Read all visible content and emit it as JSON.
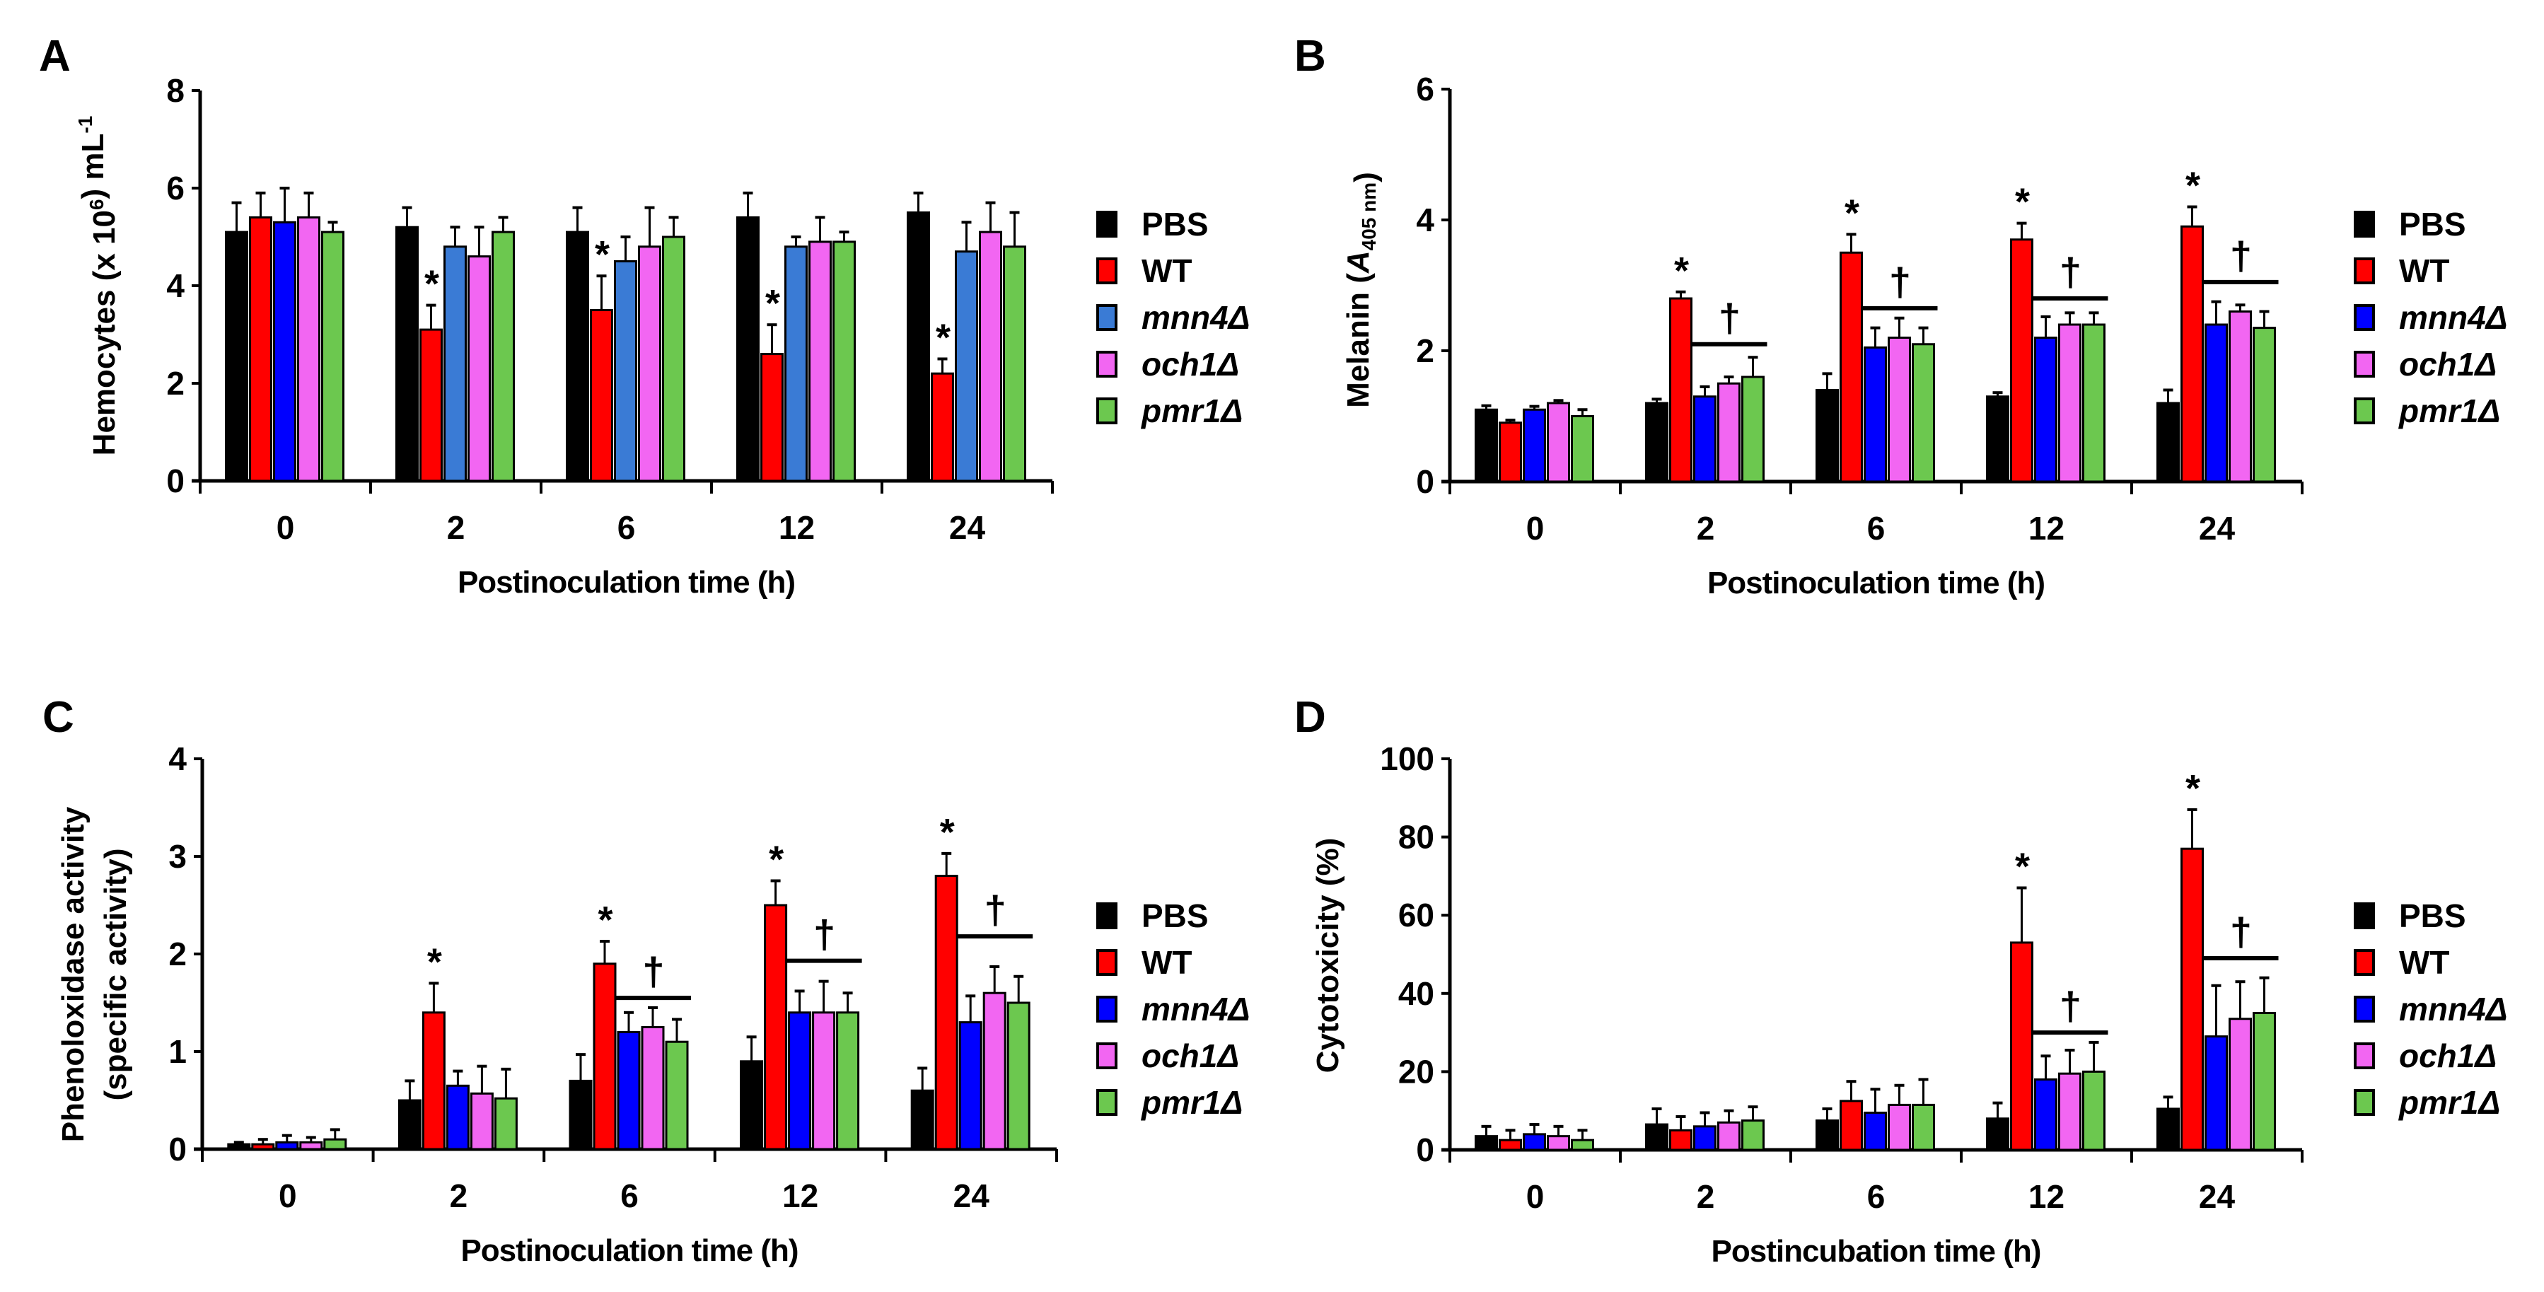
{
  "legend_colors": {
    "PBS": "#000000",
    "WT": "#ff0000",
    "mnn4Δ": "#0000ff",
    "och1Δ": "#f266f2",
    "pmr1Δ": "#6cc84f"
  },
  "chart_data": [
    {
      "panel": "A",
      "type": "bar",
      "ylabel_parts": [
        {
          "t": "Hemocytes (x 10"
        },
        {
          "t": "6",
          "sup": true
        },
        {
          "t": ") mL"
        },
        {
          "t": "-1",
          "sup": true
        }
      ],
      "xlabel": "Postinoculation time (h)",
      "categories": [
        "0",
        "2",
        "6",
        "12",
        "24"
      ],
      "ylim": [
        0,
        8
      ],
      "yticks": [
        "0",
        "2",
        "4",
        "6",
        "8"
      ],
      "series_colors_override": {
        "mnn4Δ": "#3a7bd5"
      },
      "series": [
        {
          "name": "PBS",
          "values": [
            5.1,
            5.2,
            5.1,
            5.4,
            5.5
          ],
          "errors": [
            0.6,
            0.4,
            0.5,
            0.5,
            0.4
          ]
        },
        {
          "name": "WT",
          "values": [
            5.4,
            3.1,
            3.5,
            2.6,
            2.2
          ],
          "errors": [
            0.5,
            0.5,
            0.7,
            0.6,
            0.3
          ]
        },
        {
          "name": "mnn4Δ",
          "values": [
            5.3,
            4.8,
            4.5,
            4.8,
            4.7
          ],
          "errors": [
            0.7,
            0.4,
            0.5,
            0.2,
            0.6
          ]
        },
        {
          "name": "och1Δ",
          "values": [
            5.4,
            4.6,
            4.8,
            4.9,
            5.1
          ],
          "errors": [
            0.5,
            0.6,
            0.8,
            0.5,
            0.6
          ]
        },
        {
          "name": "pmr1Δ",
          "values": [
            5.1,
            5.1,
            5.0,
            4.9,
            4.8
          ],
          "errors": [
            0.2,
            0.3,
            0.4,
            0.2,
            0.7
          ]
        }
      ],
      "star_categories": [
        1,
        2,
        3,
        4
      ],
      "star_symbol": "*",
      "daggers": [],
      "dagger_symbol": "†"
    },
    {
      "panel": "B",
      "type": "bar",
      "ylabel_parts": [
        {
          "t": "Melanin ("
        },
        {
          "t": "A",
          "italic": true
        },
        {
          "t": "405 nm",
          "sub": true
        },
        {
          "t": ")"
        }
      ],
      "xlabel": "Postinoculation time (h)",
      "categories": [
        "0",
        "2",
        "6",
        "12",
        "24"
      ],
      "ylim": [
        0,
        6
      ],
      "yticks": [
        "0",
        "2",
        "4",
        "6"
      ],
      "series": [
        {
          "name": "PBS",
          "values": [
            1.1,
            1.2,
            1.4,
            1.3,
            1.2
          ],
          "errors": [
            0.06,
            0.06,
            0.25,
            0.06,
            0.2
          ]
        },
        {
          "name": "WT",
          "values": [
            0.9,
            2.8,
            3.5,
            3.7,
            3.9
          ],
          "errors": [
            0.04,
            0.1,
            0.28,
            0.25,
            0.3
          ]
        },
        {
          "name": "mnn4Δ",
          "values": [
            1.1,
            1.3,
            2.05,
            2.2,
            2.4
          ],
          "errors": [
            0.05,
            0.15,
            0.3,
            0.32,
            0.35
          ]
        },
        {
          "name": "och1Δ",
          "values": [
            1.2,
            1.5,
            2.2,
            2.4,
            2.6
          ],
          "errors": [
            0.04,
            0.1,
            0.3,
            0.18,
            0.1
          ]
        },
        {
          "name": "pmr1Δ",
          "values": [
            1.0,
            1.6,
            2.1,
            2.4,
            2.35
          ],
          "errors": [
            0.1,
            0.3,
            0.25,
            0.18,
            0.25
          ]
        }
      ],
      "star_categories": [
        1,
        2,
        3,
        4
      ],
      "star_symbol": "*",
      "daggers": [
        {
          "category": 1,
          "level": 2.1
        },
        {
          "category": 2,
          "level": 2.65
        },
        {
          "category": 3,
          "level": 2.8
        },
        {
          "category": 4,
          "level": 3.05
        }
      ],
      "dagger_symbol": "†"
    },
    {
      "panel": "C",
      "type": "bar",
      "ylabel_lines": [
        "Phenoloxidase activity",
        "(specific activity)"
      ],
      "xlabel": "Postinoculation time (h)",
      "categories": [
        "0",
        "2",
        "6",
        "12",
        "24"
      ],
      "ylim": [
        0,
        4
      ],
      "yticks": [
        "0",
        "1",
        "2",
        "3",
        "4"
      ],
      "series": [
        {
          "name": "PBS",
          "values": [
            0.05,
            0.5,
            0.7,
            0.9,
            0.6
          ],
          "errors": [
            0.02,
            0.2,
            0.27,
            0.25,
            0.23
          ]
        },
        {
          "name": "WT",
          "values": [
            0.05,
            1.4,
            1.9,
            2.5,
            2.8
          ],
          "errors": [
            0.05,
            0.3,
            0.23,
            0.25,
            0.23
          ]
        },
        {
          "name": "mnn4Δ",
          "values": [
            0.07,
            0.65,
            1.2,
            1.4,
            1.3
          ],
          "errors": [
            0.07,
            0.15,
            0.2,
            0.22,
            0.27
          ]
        },
        {
          "name": "och1Δ",
          "values": [
            0.07,
            0.57,
            1.25,
            1.4,
            1.6
          ],
          "errors": [
            0.05,
            0.28,
            0.2,
            0.32,
            0.27
          ]
        },
        {
          "name": "pmr1Δ",
          "values": [
            0.1,
            0.52,
            1.1,
            1.4,
            1.5
          ],
          "errors": [
            0.1,
            0.3,
            0.23,
            0.2,
            0.27
          ]
        }
      ],
      "star_categories": [
        1,
        2,
        3,
        4
      ],
      "star_symbol": "*",
      "daggers": [
        {
          "category": 2,
          "level": 1.55
        },
        {
          "category": 3,
          "level": 1.93
        },
        {
          "category": 4,
          "level": 2.18
        }
      ],
      "dagger_symbol": "†"
    },
    {
      "panel": "D",
      "type": "bar",
      "ylabel_parts": [
        {
          "t": "Cytotoxicity (%)"
        }
      ],
      "xlabel": "Postincubation time (h)",
      "categories": [
        "0",
        "2",
        "6",
        "12",
        "24"
      ],
      "ylim": [
        0,
        100
      ],
      "yticks": [
        "0",
        "20",
        "40",
        "60",
        "80",
        "100"
      ],
      "series": [
        {
          "name": "PBS",
          "values": [
            3.5,
            6.5,
            7.5,
            8,
            10.5
          ],
          "errors": [
            2.5,
            4,
            3,
            4,
            3
          ]
        },
        {
          "name": "WT",
          "values": [
            2.5,
            5,
            12.5,
            53,
            77
          ],
          "errors": [
            2.5,
            3.5,
            5,
            14,
            10
          ]
        },
        {
          "name": "mnn4Δ",
          "values": [
            4,
            6,
            9.5,
            18,
            29
          ],
          "errors": [
            2.5,
            3.5,
            6,
            6,
            13
          ]
        },
        {
          "name": "och1Δ",
          "values": [
            3.5,
            7,
            11.5,
            19.5,
            33.5
          ],
          "errors": [
            2.5,
            3,
            5,
            6,
            9.5
          ]
        },
        {
          "name": "pmr1Δ",
          "values": [
            2.5,
            7.5,
            11.5,
            20,
            35
          ],
          "errors": [
            2.5,
            3.5,
            6.5,
            7.5,
            9
          ]
        }
      ],
      "star_categories": [
        3,
        4
      ],
      "star_symbol": "*",
      "daggers": [
        {
          "category": 3,
          "level": 30
        },
        {
          "category": 4,
          "level": 49
        }
      ],
      "dagger_symbol": "†"
    }
  ]
}
